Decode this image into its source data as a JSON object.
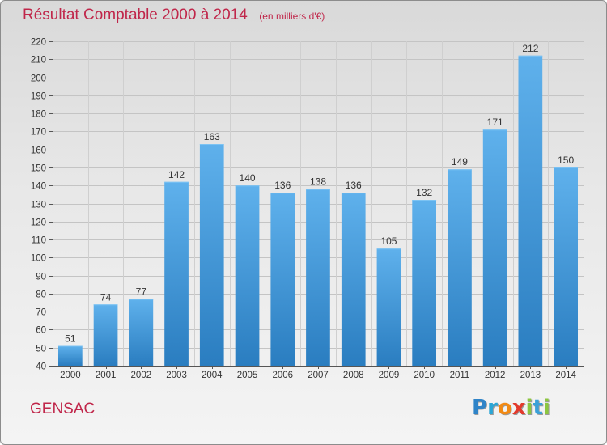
{
  "title": "Résultat Comptable 2000 à 2014",
  "unit": "(en milliers d'€)",
  "commune": "GENSAC",
  "logo": {
    "letters": [
      {
        "char": "P",
        "color": "#2f84c8"
      },
      {
        "char": "r",
        "color": "#2aa6d6"
      },
      {
        "char": "o",
        "color": "#f28a14"
      },
      {
        "char": "x",
        "color": "#e33a2c"
      },
      {
        "char": "i",
        "color": "#8cc63f"
      },
      {
        "char": "t",
        "color": "#3aa1d8"
      },
      {
        "char": "i",
        "color": "#8cc63f"
      }
    ]
  },
  "colors": {
    "bar_top": "#5fb1ec",
    "bar_bottom": "#2a7dc0",
    "text": "#333333",
    "accent": "#c0264a"
  },
  "chart_data": {
    "type": "bar",
    "title": "Résultat Comptable 2000 à 2014",
    "subtitle": "(en milliers d'€)",
    "xlabel": "",
    "ylabel": "",
    "categories": [
      "2000",
      "2001",
      "2002",
      "2003",
      "2004",
      "2005",
      "2006",
      "2007",
      "2008",
      "2009",
      "2010",
      "2011",
      "2012",
      "2013",
      "2014"
    ],
    "values": [
      51,
      74,
      77,
      142,
      163,
      140,
      136,
      138,
      136,
      105,
      132,
      149,
      171,
      212,
      150
    ],
    "ylim": [
      40,
      220
    ],
    "yticks": [
      40,
      50,
      60,
      70,
      80,
      90,
      100,
      110,
      120,
      130,
      140,
      150,
      160,
      170,
      180,
      190,
      200,
      210,
      220
    ],
    "grid": true,
    "data_labels": true
  }
}
